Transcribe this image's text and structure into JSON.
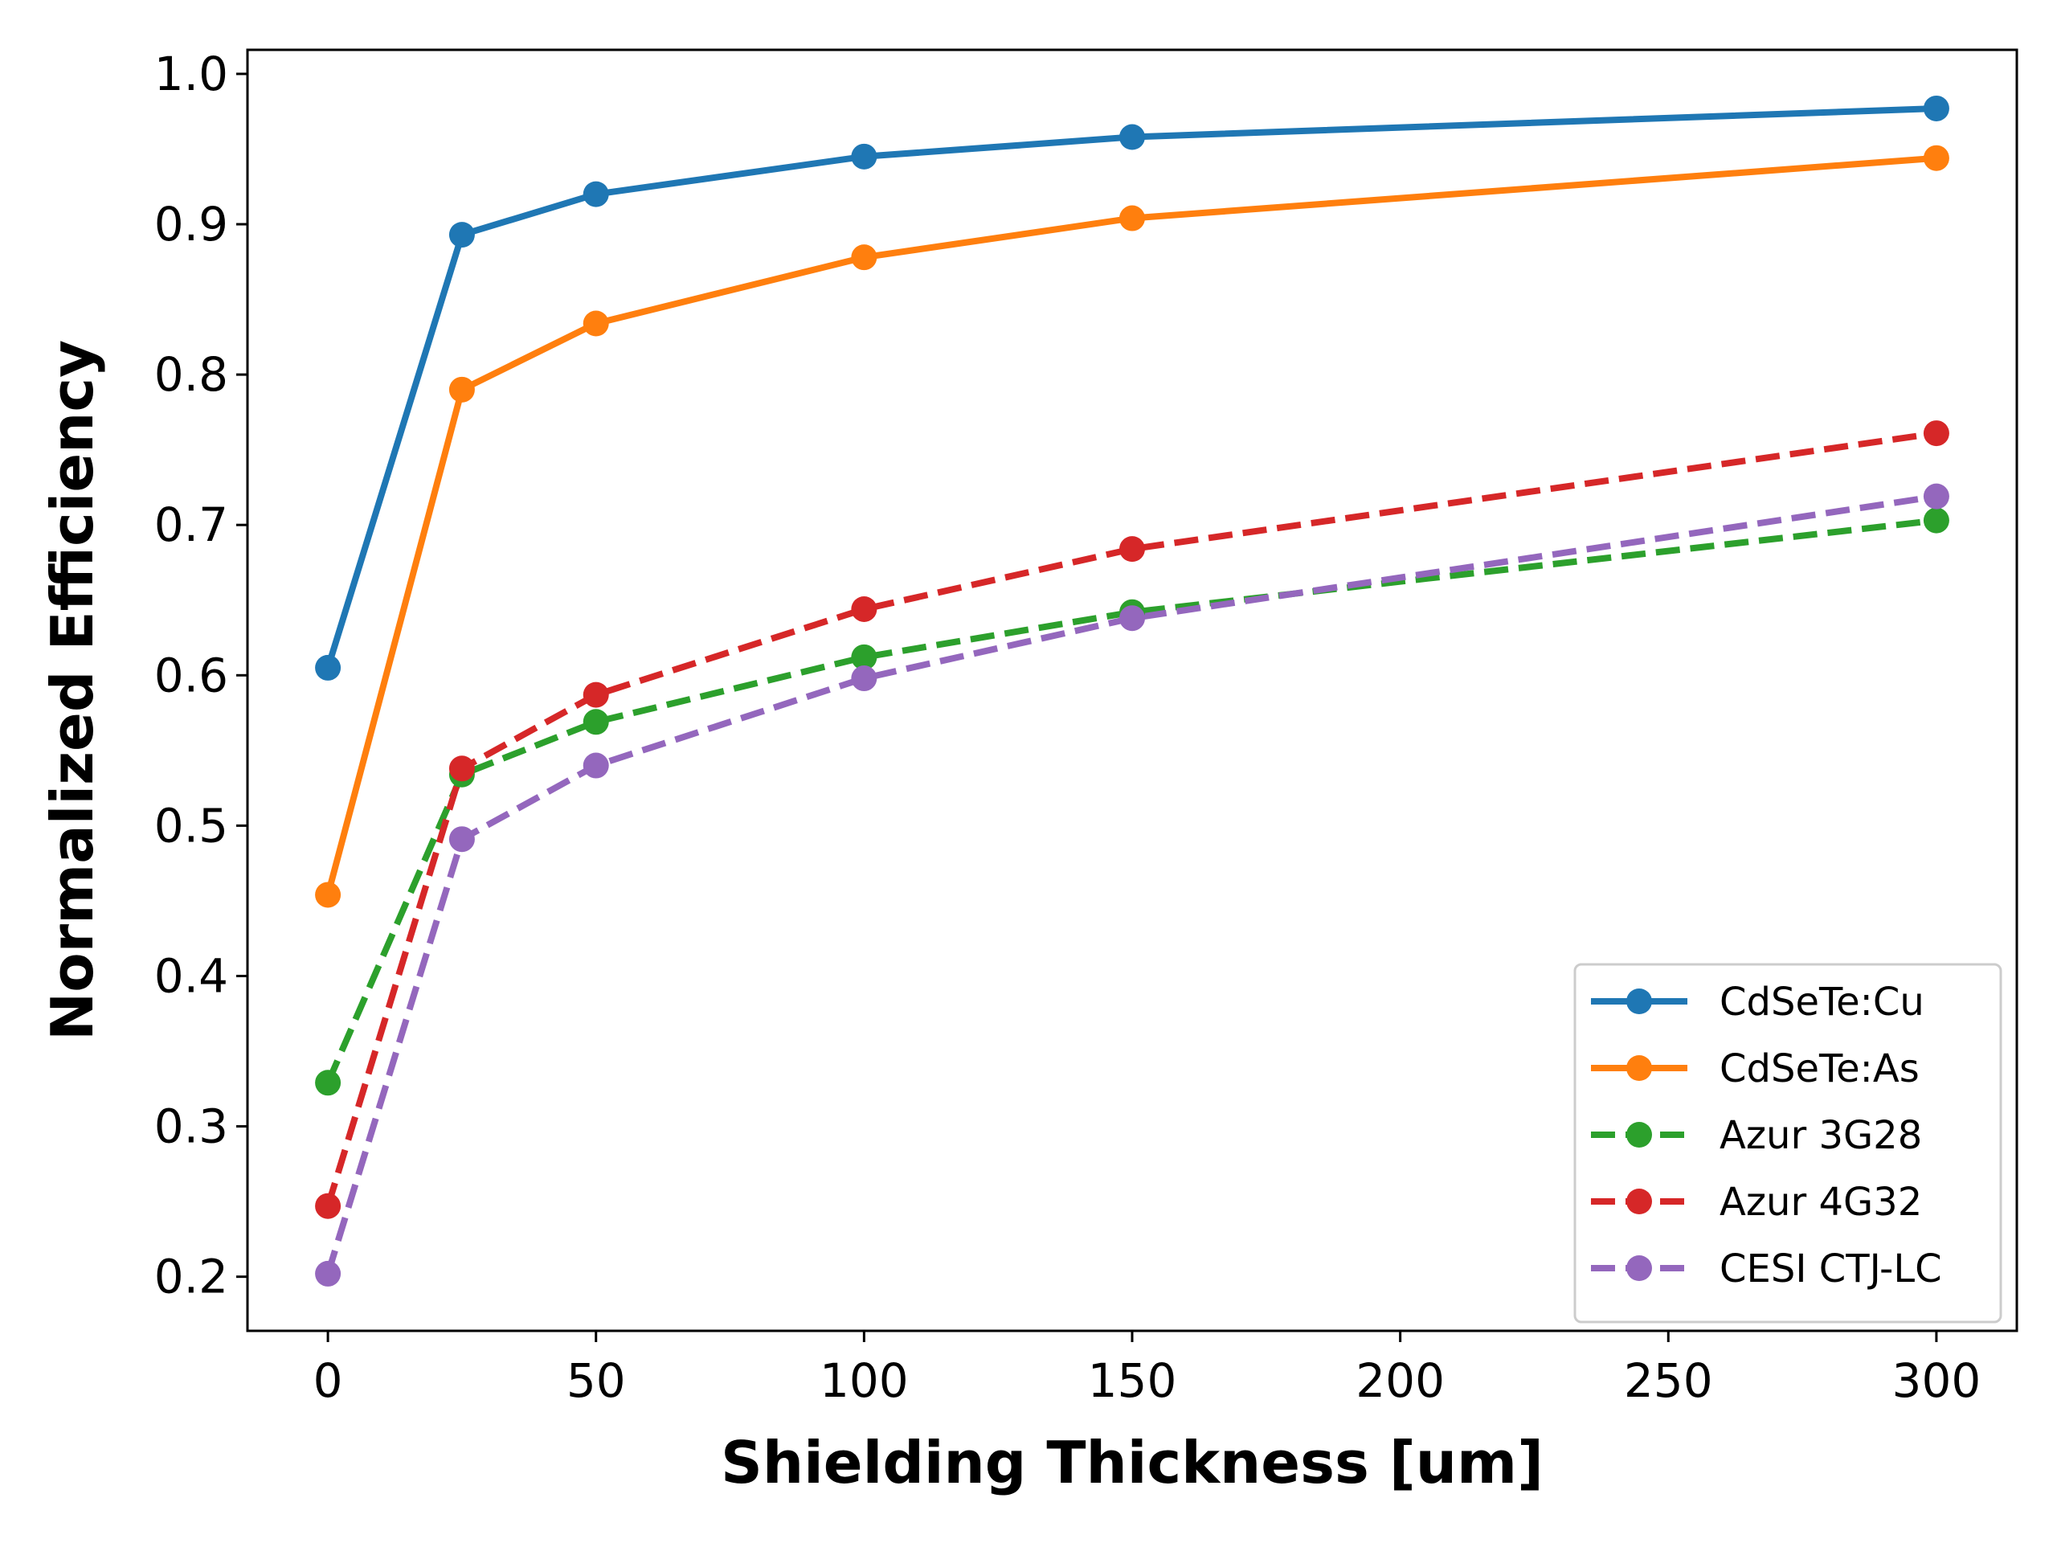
{
  "chart_data": {
    "type": "line",
    "title": "",
    "xlabel": "Shielding Thickness [um]",
    "ylabel": "Normalized Efficiency",
    "xlim": [
      -15,
      315
    ],
    "ylim": [
      0.164,
      1.016
    ],
    "xticks": [
      0,
      50,
      100,
      150,
      200,
      250,
      300
    ],
    "yticks": [
      0.2,
      0.3,
      0.4,
      0.5,
      0.6,
      0.7,
      0.8,
      0.9,
      1.0
    ],
    "xtick_labels": [
      "0",
      "50",
      "100",
      "150",
      "200",
      "250",
      "300"
    ],
    "ytick_labels": [
      "0.2",
      "0.3",
      "0.4",
      "0.5",
      "0.6",
      "0.7",
      "0.8",
      "0.9",
      "1.0"
    ],
    "grid": false,
    "legend_position": "lower-right",
    "x": [
      0,
      25,
      50,
      100,
      150,
      300
    ],
    "series": [
      {
        "name": "CdSeTe:Cu",
        "color": "#1f77b4",
        "linestyle": "solid",
        "values": [
          0.605,
          0.893,
          0.92,
          0.945,
          0.958,
          0.977
        ]
      },
      {
        "name": "CdSeTe:As",
        "color": "#ff7f0e",
        "linestyle": "solid",
        "values": [
          0.454,
          0.79,
          0.834,
          0.878,
          0.904,
          0.944
        ]
      },
      {
        "name": "Azur 3G28",
        "color": "#2ca02c",
        "linestyle": "dashed",
        "values": [
          0.329,
          0.534,
          0.569,
          0.612,
          0.642,
          0.703
        ]
      },
      {
        "name": "Azur 4G32",
        "color": "#d62728",
        "linestyle": "dashed",
        "values": [
          0.247,
          0.538,
          0.587,
          0.644,
          0.684,
          0.761
        ]
      },
      {
        "name": "CESI CTJ-LC",
        "color": "#9467bd",
        "linestyle": "dashed",
        "values": [
          0.202,
          0.491,
          0.54,
          0.598,
          0.638,
          0.719
        ]
      }
    ]
  }
}
